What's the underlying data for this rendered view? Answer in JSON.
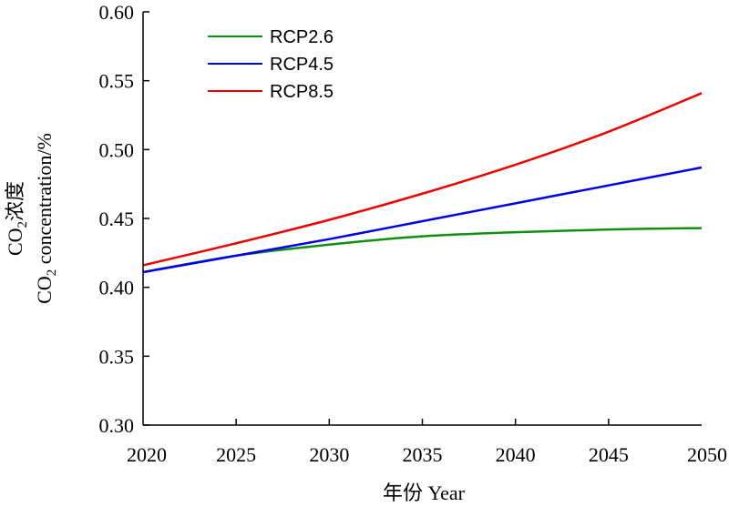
{
  "chart_data": {
    "type": "line",
    "title": "",
    "xlabel": "年份 Year",
    "ylabel_line1": {
      "main": "CO",
      "sub": "2",
      "rest": "浓度"
    },
    "ylabel_line2": {
      "main": "CO",
      "sub": "2",
      "rest": " concentration/%"
    },
    "xlim": [
      2020,
      2050
    ],
    "ylim": [
      0.3,
      0.6
    ],
    "x_ticks": [
      2020,
      2025,
      2030,
      2035,
      2040,
      2045,
      2050
    ],
    "x_tick_labels": [
      "2020",
      "2025",
      "2030",
      "2035",
      "2040",
      "2045",
      "2050"
    ],
    "y_ticks": [
      0.3,
      0.35,
      0.4,
      0.45,
      0.5,
      0.55,
      0.6
    ],
    "y_tick_labels": [
      "0.30",
      "0.35",
      "0.40",
      "0.45",
      "0.50",
      "0.55",
      "0.60"
    ],
    "grid": false,
    "legend_position": "top-left",
    "x": [
      2020,
      2025,
      2030,
      2035,
      2040,
      2045,
      2050
    ],
    "series": [
      {
        "name": "RCP2.6",
        "color": "#109010",
        "values": [
          0.411,
          0.423,
          0.431,
          0.437,
          0.44,
          0.442,
          0.443
        ]
      },
      {
        "name": "RCP4.5",
        "color": "#0000ee",
        "values": [
          0.411,
          0.423,
          0.435,
          0.448,
          0.461,
          0.474,
          0.487
        ]
      },
      {
        "name": "RCP8.5",
        "color": "#ee0000",
        "values": [
          0.416,
          0.432,
          0.449,
          0.468,
          0.489,
          0.513,
          0.541
        ]
      }
    ]
  }
}
